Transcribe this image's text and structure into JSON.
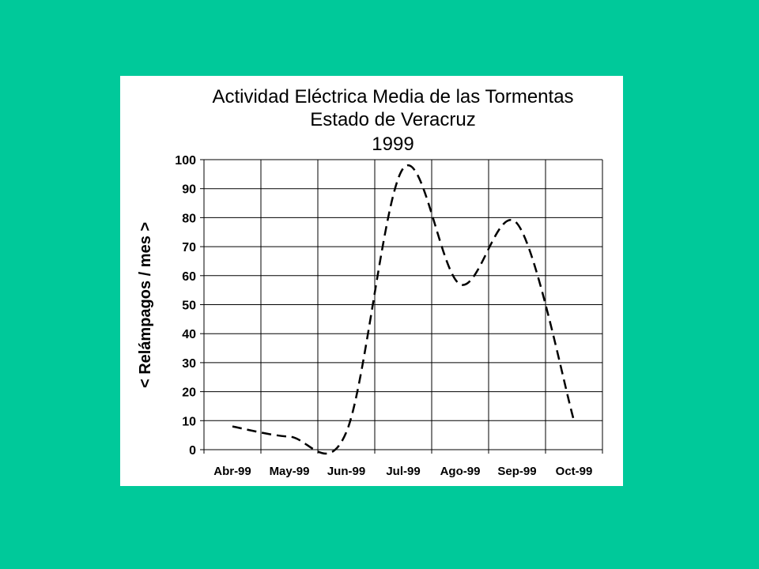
{
  "colors": {
    "page_background": "#00C99A",
    "chart_background": "#FFFFFF",
    "grid": "#000000",
    "series_line": "#000000"
  },
  "chart_data": {
    "type": "line",
    "title_lines": [
      "Actividad Eléctrica Media de las Tormentas",
      "Estado de Veracruz",
      "1999"
    ],
    "xlabel": "",
    "ylabel": "< Relámpagos / mes >",
    "categories": [
      "Abr-99",
      "May-99",
      "Jun-99",
      "Jul-99",
      "Ago-99",
      "Sep-99",
      "Oct-99"
    ],
    "ylim": [
      0,
      100
    ],
    "yticks": [
      "0",
      "10",
      "20",
      "30",
      "40",
      "50",
      "60",
      "70",
      "80",
      "90",
      "100"
    ],
    "grid": true,
    "legend": "none",
    "line_style": "dashed",
    "series": [
      {
        "values": [
          8,
          4.5,
          6,
          97,
          57,
          78,
          10
        ]
      }
    ]
  }
}
